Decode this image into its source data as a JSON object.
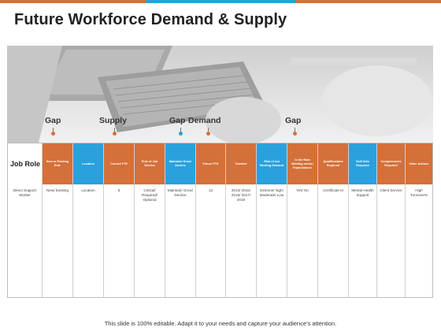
{
  "title": "Future Workforce Demand & Supply",
  "markers": [
    {
      "label": "Gap",
      "color": "#d4703a"
    },
    {
      "label": "Supply",
      "color": "#d4703a"
    },
    {
      "label": "Gap",
      "color": "#2aa1dc"
    },
    {
      "label": "Demand",
      "color": "#d4703a"
    },
    {
      "label": "Gap",
      "color": "#d4703a"
    }
  ],
  "table": {
    "first_header": "Job Role",
    "first_cell": "Direct Support Worker",
    "columns": [
      {
        "header": "New or Existing Role",
        "value": "New/ Existing",
        "color": "orange"
      },
      {
        "header": "Location",
        "value": "Location",
        "color": "blue"
      },
      {
        "header": "Current FTE",
        "value": "6",
        "color": "orange"
      },
      {
        "header": "Role of Job Service",
        "value": "Critical/ Required/ Optional",
        "color": "orange"
      },
      {
        "header": "Maintain/ Grow/ Decline",
        "value": "Maintain/ Grow/ Decline",
        "color": "blue"
      },
      {
        "header": "Future FTE",
        "value": "12",
        "color": "orange"
      },
      {
        "header": "Timeline",
        "value": "2014/ 2015/ 2016/ 2017/ 2019",
        "color": "orange"
      },
      {
        "header": "Risk of not Meeting Demand",
        "value": "Extreme/ high/ Moderate/ Low",
        "color": "blue"
      },
      {
        "header": "Is the Role Meeting needs/ Expectations",
        "value": "Yes/ No",
        "color": "orange"
      },
      {
        "header": "Qualifications Required",
        "value": "Certificate III",
        "color": "orange"
      },
      {
        "header": "Skill Sets Required",
        "value": "Mental Health Support",
        "color": "blue"
      },
      {
        "header": "Competencies Required",
        "value": "Client Service",
        "color": "orange"
      },
      {
        "header": "Other Actions",
        "value": "High Turnover%",
        "color": "orange"
      }
    ]
  },
  "footer": "This slide is 100% editable. Adapt it to your needs and capture your audience's attention."
}
